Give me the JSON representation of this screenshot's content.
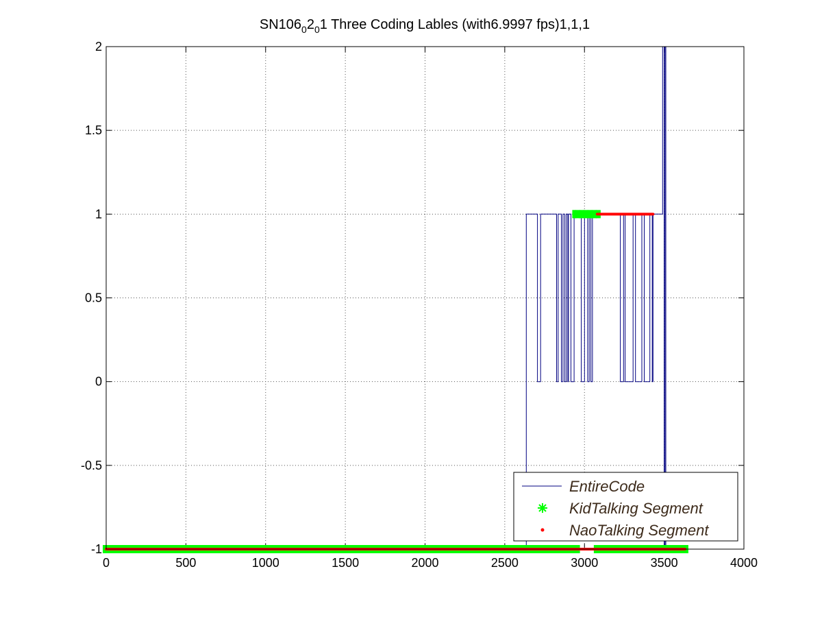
{
  "chart_data": {
    "type": "line",
    "title": {
      "prefix": "SN106",
      "sub1": "0",
      "mid": "2",
      "sub2": "0",
      "suffix": "1 Three Coding Lables (with6.9997 fps)1,1,1"
    },
    "xlabel": "",
    "ylabel": "",
    "xlim": [
      0,
      4000
    ],
    "ylim": [
      -1,
      2
    ],
    "x_ticks": [
      0,
      500,
      1000,
      1500,
      2000,
      2500,
      3000,
      3500,
      4000
    ],
    "x_tick_labels": [
      "0",
      "500",
      "1000",
      "1500",
      "2000",
      "2500",
      "3000",
      "3500",
      "4000"
    ],
    "y_ticks": [
      -1,
      -0.5,
      0,
      0.5,
      1,
      1.5,
      2
    ],
    "y_tick_labels": [
      "-1",
      "-0.5",
      "0",
      "0.5",
      "1",
      "1.5",
      "2"
    ],
    "grid": true,
    "legend_placement": "bottom-right",
    "series": [
      {
        "name": "EntireCode",
        "style": "line",
        "color": "#000080",
        "points": [
          [
            0,
            -1
          ],
          [
            2635,
            -1
          ],
          [
            2635,
            1
          ],
          [
            2705,
            1
          ],
          [
            2705,
            0
          ],
          [
            2725,
            0
          ],
          [
            2725,
            1
          ],
          [
            2825,
            1
          ],
          [
            2825,
            0
          ],
          [
            2835,
            0
          ],
          [
            2835,
            1
          ],
          [
            2855,
            1
          ],
          [
            2855,
            0
          ],
          [
            2865,
            0
          ],
          [
            2865,
            1
          ],
          [
            2875,
            1
          ],
          [
            2875,
            0
          ],
          [
            2885,
            0
          ],
          [
            2885,
            1
          ],
          [
            2895,
            1
          ],
          [
            2895,
            0
          ],
          [
            2900,
            0
          ],
          [
            2900,
            1
          ],
          [
            2915,
            1
          ],
          [
            2915,
            0
          ],
          [
            2935,
            0
          ],
          [
            2935,
            1
          ],
          [
            2980,
            1
          ],
          [
            2980,
            0
          ],
          [
            3000,
            0
          ],
          [
            3000,
            1
          ],
          [
            3020,
            1
          ],
          [
            3020,
            0
          ],
          [
            3030,
            0
          ],
          [
            3030,
            1
          ],
          [
            3040,
            1
          ],
          [
            3040,
            0
          ],
          [
            3050,
            0
          ],
          [
            3050,
            1
          ],
          [
            3225,
            1
          ],
          [
            3225,
            0
          ],
          [
            3245,
            0
          ],
          [
            3245,
            1
          ],
          [
            3255,
            1
          ],
          [
            3255,
            0
          ],
          [
            3305,
            0
          ],
          [
            3305,
            1
          ],
          [
            3320,
            1
          ],
          [
            3320,
            0
          ],
          [
            3360,
            0
          ],
          [
            3360,
            1
          ],
          [
            3375,
            1
          ],
          [
            3375,
            0
          ],
          [
            3410,
            0
          ],
          [
            3410,
            1
          ],
          [
            3425,
            1
          ],
          [
            3425,
            0
          ],
          [
            3430,
            0
          ],
          [
            3430,
            1
          ],
          [
            3490,
            1
          ],
          [
            3490,
            2
          ],
          [
            3500,
            2
          ],
          [
            3500,
            -1
          ],
          [
            3505,
            -1
          ],
          [
            3505,
            2
          ],
          [
            3510,
            2
          ],
          [
            3510,
            -1
          ],
          [
            3630,
            -1
          ]
        ]
      },
      {
        "name": "KidTalking Segment",
        "style": "marker-asterisk",
        "color": "#00ff00",
        "segments": [
          {
            "y": -1,
            "x_start": 0,
            "x_end": 2950
          },
          {
            "y": 1,
            "x_start": 2945,
            "x_end": 3080
          },
          {
            "y": -1,
            "x_start": 3080,
            "x_end": 3630
          }
        ]
      },
      {
        "name": "NaoTalking Segment",
        "style": "marker-dot",
        "color": "#ff0000",
        "segments": [
          {
            "y": -1,
            "x_start": 0,
            "x_end": 3630
          },
          {
            "y": 1,
            "x_start": 3080,
            "x_end": 3430
          }
        ]
      }
    ]
  }
}
